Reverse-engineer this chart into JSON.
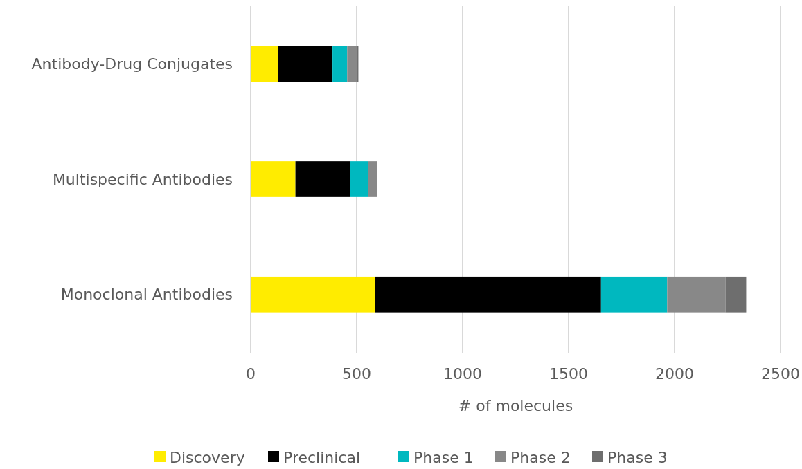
{
  "chart_data": {
    "type": "bar",
    "orientation": "horizontal",
    "stacked": true,
    "xlabel": "# of molecules",
    "categories": [
      "Antibody-Drug Conjugates",
      "Multispecific Antibodies",
      "Monoclonal Antibodies"
    ],
    "series": [
      {
        "name": "Discovery",
        "color": "#ffec00",
        "values": [
          128,
          211,
          587
        ]
      },
      {
        "name": "Preclinical",
        "color": "#000000",
        "values": [
          258,
          259,
          1066
        ]
      },
      {
        "name": "Phase 1",
        "color": "#00b8bf",
        "values": [
          69,
          85,
          312
        ]
      },
      {
        "name": "Phase 2",
        "color": "#888888",
        "values": [
          48,
          43,
          275
        ]
      },
      {
        "name": "Phase 3",
        "color": "#6e6e6e",
        "values": [
          5,
          0,
          98
        ]
      }
    ],
    "xlim": [
      0,
      2500
    ],
    "xticks": [
      0,
      500,
      1000,
      1500,
      2000,
      2500
    ],
    "grid": "x",
    "legend": "bottom"
  }
}
